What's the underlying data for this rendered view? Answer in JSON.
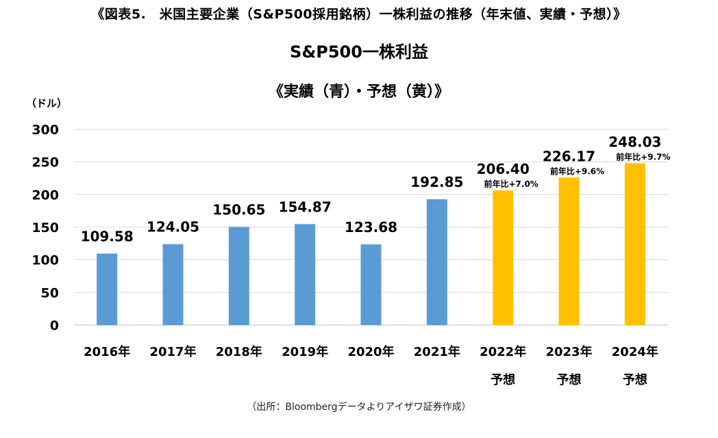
{
  "figure": {
    "title": "《図表5.　米国主要企業（S&P500採用銘柄）一株利益の推移（年末値、実績・予想）》",
    "source": "（出所：Bloombergデータよりアイザワ証券作成）"
  },
  "colors": {
    "actual": "#5b9bd5",
    "forecast": "#ffc000",
    "grid": "#d9d9d9",
    "axis": "#bfbfbf"
  },
  "chart_data": {
    "type": "bar",
    "title": "S&P500一株利益",
    "subtitle": "《実績（青）・予想（黄）》",
    "ylabel": "（ドル）",
    "xlabel": "",
    "ylim": [
      0,
      300
    ],
    "yticks": [
      0,
      50,
      100,
      150,
      200,
      250,
      300
    ],
    "grid": true,
    "categories": [
      "2016年",
      "2017年",
      "2018年",
      "2019年",
      "2020年",
      "2021年",
      "2022年",
      "2023年",
      "2024年"
    ],
    "category_sublabels": [
      "",
      "",
      "",
      "",
      "",
      "",
      "予想",
      "予想",
      "予想"
    ],
    "values": [
      109.58,
      124.05,
      150.65,
      154.87,
      123.68,
      192.85,
      206.4,
      226.17,
      248.03
    ],
    "value_labels": [
      "109.58",
      "124.05",
      "150.65",
      "154.87",
      "123.68",
      "192.85",
      "206.40",
      "226.17",
      "248.03"
    ],
    "kinds": [
      "actual",
      "actual",
      "actual",
      "actual",
      "actual",
      "actual",
      "forecast",
      "forecast",
      "forecast"
    ],
    "annotations": [
      "",
      "",
      "",
      "",
      "",
      "",
      "前年比+7.0%",
      "前年比+9.6%",
      "前年比+9.7%"
    ]
  }
}
